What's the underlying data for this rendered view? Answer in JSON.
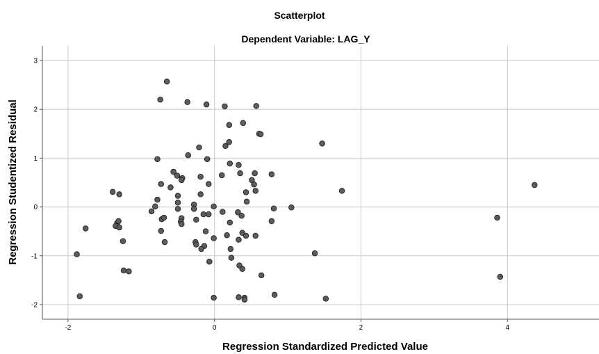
{
  "chart_data": {
    "type": "scatter",
    "title": "Scatterplot",
    "subtitle": "Dependent Variable: LAG_Y",
    "xlabel": "Regression Standardized Predicted Value",
    "ylabel": "Regression Studentized Residual",
    "xlim": [
      -2.35,
      5.25
    ],
    "ylim": [
      -2.3,
      3.3
    ],
    "xticks": [
      -2,
      0,
      2,
      4
    ],
    "yticks": [
      -2,
      -1,
      0,
      1,
      2,
      3
    ],
    "grid": true,
    "marker_color": "#5c5c5c",
    "points": [
      [
        -0.65,
        2.57
      ],
      [
        -0.74,
        2.2
      ],
      [
        -0.37,
        2.15
      ],
      [
        -0.11,
        2.1
      ],
      [
        0.14,
        2.06
      ],
      [
        0.57,
        2.07
      ],
      [
        0.2,
        1.68
      ],
      [
        0.39,
        1.72
      ],
      [
        0.61,
        1.5
      ],
      [
        0.63,
        1.49
      ],
      [
        1.47,
        1.3
      ],
      [
        0.2,
        1.33
      ],
      [
        0.15,
        1.25
      ],
      [
        -0.21,
        1.22
      ],
      [
        -0.36,
        1.06
      ],
      [
        -0.78,
        0.98
      ],
      [
        -0.1,
        0.98
      ],
      [
        0.21,
        0.89
      ],
      [
        0.33,
        0.86
      ],
      [
        -0.56,
        0.72
      ],
      [
        -0.51,
        0.64
      ],
      [
        -0.44,
        0.59
      ],
      [
        -0.45,
        0.55
      ],
      [
        -0.19,
        0.62
      ],
      [
        0.1,
        0.65
      ],
      [
        0.35,
        0.69
      ],
      [
        0.55,
        0.69
      ],
      [
        0.78,
        0.67
      ],
      [
        0.51,
        0.55
      ],
      [
        0.54,
        0.46
      ],
      [
        0.56,
        0.33
      ],
      [
        0.43,
        0.3
      ],
      [
        0.44,
        0.11
      ],
      [
        -0.73,
        0.47
      ],
      [
        -0.6,
        0.4
      ],
      [
        -0.08,
        0.47
      ],
      [
        1.74,
        0.33
      ],
      [
        -1.39,
        0.31
      ],
      [
        -1.3,
        0.26
      ],
      [
        -0.5,
        0.23
      ],
      [
        -0.19,
        0.26
      ],
      [
        -0.5,
        0.09
      ],
      [
        -0.28,
        0.05
      ],
      [
        -0.78,
        0.15
      ],
      [
        -0.81,
        0.01
      ],
      [
        -0.86,
        -0.09
      ],
      [
        -0.5,
        -0.04
      ],
      [
        -0.28,
        -0.04
      ],
      [
        -0.01,
        0.01
      ],
      [
        0.81,
        -0.03
      ],
      [
        1.05,
        -0.01
      ],
      [
        4.37,
        0.45
      ],
      [
        -0.15,
        -0.15
      ],
      [
        -0.08,
        -0.15
      ],
      [
        -0.25,
        -0.26
      ],
      [
        -0.45,
        -0.23
      ],
      [
        0.11,
        -0.1
      ],
      [
        0.32,
        -0.11
      ],
      [
        0.37,
        -0.18
      ],
      [
        0.78,
        -0.29
      ],
      [
        3.86,
        -0.22
      ],
      [
        -0.72,
        -0.25
      ],
      [
        -0.69,
        -0.22
      ],
      [
        -0.46,
        -0.3
      ],
      [
        -0.45,
        -0.35
      ],
      [
        0.21,
        -0.32
      ],
      [
        -1.76,
        -0.44
      ],
      [
        -1.33,
        -0.33
      ],
      [
        -1.35,
        -0.39
      ],
      [
        -1.31,
        -0.29
      ],
      [
        -1.3,
        -0.42
      ],
      [
        -0.73,
        -0.49
      ],
      [
        -0.12,
        -0.5
      ],
      [
        0.38,
        -0.53
      ],
      [
        0.43,
        -0.59
      ],
      [
        0.56,
        -0.59
      ],
      [
        0.17,
        -0.58
      ],
      [
        0.33,
        -0.67
      ],
      [
        -0.01,
        -0.64
      ],
      [
        -0.26,
        -0.72
      ],
      [
        -0.25,
        -0.77
      ],
      [
        -0.14,
        -0.8
      ],
      [
        -0.18,
        -0.86
      ],
      [
        -1.25,
        -0.7
      ],
      [
        -0.68,
        -0.72
      ],
      [
        0.22,
        -0.86
      ],
      [
        -1.88,
        -0.97
      ],
      [
        1.37,
        -0.95
      ],
      [
        0.23,
        -1.04
      ],
      [
        -0.07,
        -1.12
      ],
      [
        0.34,
        -1.2
      ],
      [
        0.38,
        -1.27
      ],
      [
        -1.24,
        -1.3
      ],
      [
        -1.17,
        -1.32
      ],
      [
        0.64,
        -1.4
      ],
      [
        3.9,
        -1.43
      ],
      [
        -1.84,
        -1.83
      ],
      [
        -0.01,
        -1.86
      ],
      [
        0.33,
        -1.85
      ],
      [
        0.41,
        -1.86
      ],
      [
        0.41,
        -1.9
      ],
      [
        0.82,
        -1.8
      ],
      [
        1.52,
        -1.88
      ]
    ]
  }
}
